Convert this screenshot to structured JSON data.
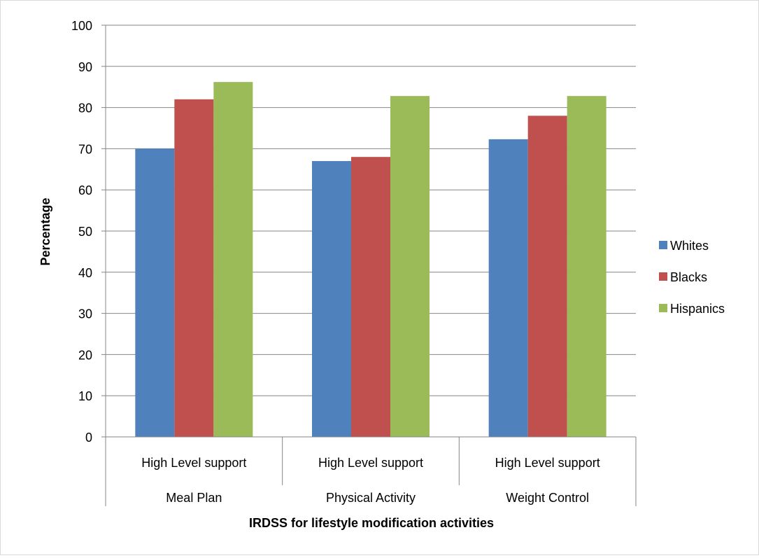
{
  "chart_data": {
    "type": "bar",
    "categories": [
      {
        "level1": "High Level support",
        "level2": "Meal Plan"
      },
      {
        "level1": "High Level support",
        "level2": "Physical Activity"
      },
      {
        "level1": "High Level support",
        "level2": "Weight Control"
      }
    ],
    "series": [
      {
        "name": "Whites",
        "color": "#4f81bd",
        "values": [
          70,
          67,
          72.3
        ]
      },
      {
        "name": "Blacks",
        "color": "#c0504d",
        "values": [
          82,
          68,
          78
        ]
      },
      {
        "name": "Hispanics",
        "color": "#9bbb59",
        "values": [
          86.2,
          82.8,
          82.8
        ]
      }
    ],
    "xlabel": "IRDSS for lifestyle modification activities",
    "ylabel": "Percentage",
    "ylim": [
      0,
      100
    ],
    "yticks": [
      0,
      10,
      20,
      30,
      40,
      50,
      60,
      70,
      80,
      90,
      100
    ],
    "grid": true,
    "legend_position": "right"
  }
}
